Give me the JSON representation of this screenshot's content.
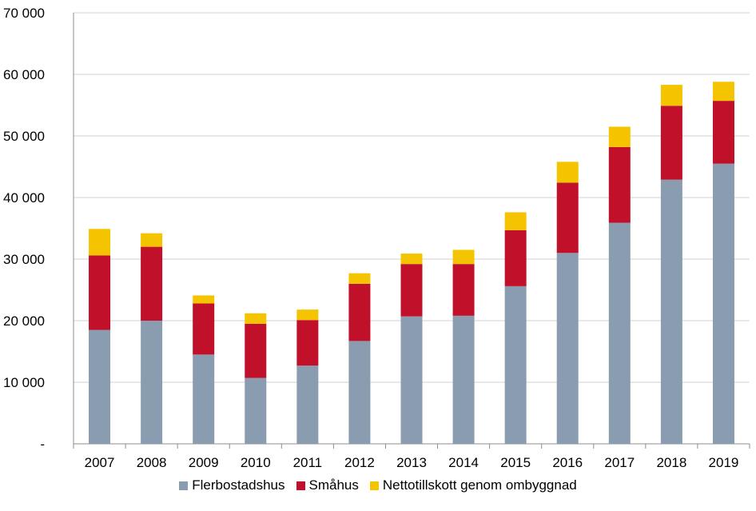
{
  "chart_data": {
    "type": "bar",
    "stacked": true,
    "categories": [
      "2007",
      "2008",
      "2009",
      "2010",
      "2011",
      "2012",
      "2013",
      "2014",
      "2015",
      "2016",
      "2017",
      "2018",
      "2019"
    ],
    "series": [
      {
        "name": "Flerbostadshus",
        "color": "#8a9db0",
        "values": [
          18500,
          20000,
          14500,
          10700,
          12700,
          16700,
          20700,
          20800,
          25600,
          31000,
          35900,
          42900,
          45500
        ]
      },
      {
        "name": "Småhus",
        "color": "#c0102a",
        "values": [
          12100,
          12000,
          8300,
          8800,
          7400,
          9300,
          8500,
          8400,
          9100,
          11400,
          12300,
          12000,
          10200
        ]
      },
      {
        "name": "Nettotillskott genom ombyggnad",
        "color": "#f5c400",
        "values": [
          4300,
          2200,
          1300,
          1700,
          1700,
          1700,
          1700,
          2300,
          2900,
          3400,
          3300,
          3400,
          3100
        ]
      }
    ],
    "ylim": [
      0,
      70000
    ],
    "ytick_labels": [
      "-",
      "10 000",
      "20 000",
      "30 000",
      "40 000",
      "50 000",
      "60 000",
      "70 000"
    ],
    "grid": true,
    "legend_position": "bottom",
    "title": "",
    "xlabel": "",
    "ylabel": ""
  }
}
